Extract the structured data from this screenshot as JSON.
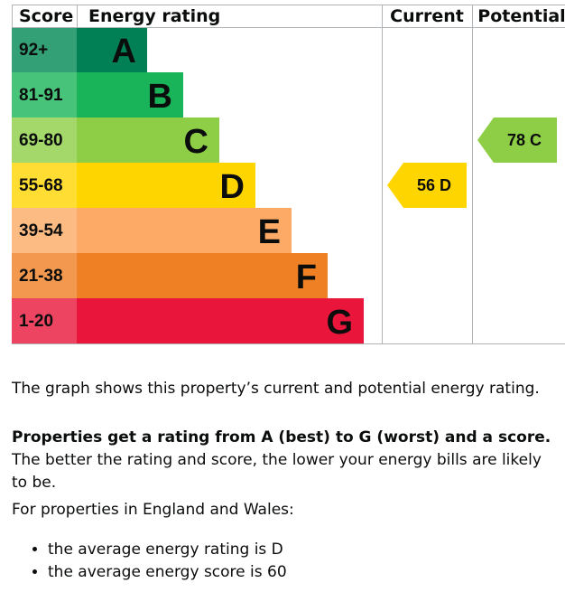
{
  "chart_data": {
    "type": "table",
    "headers": {
      "score": "Score",
      "rating": "Energy rating",
      "current": "Current",
      "potential": "Potential"
    },
    "bands": [
      {
        "range": "92+",
        "letter": "A",
        "color": "#008054",
        "score_color": "#33a076"
      },
      {
        "range": "81-91",
        "letter": "B",
        "color": "#19b459",
        "score_color": "#47c37a"
      },
      {
        "range": "69-80",
        "letter": "C",
        "color": "#8dce46",
        "score_color": "#a4d86b"
      },
      {
        "range": "55-68",
        "letter": "D",
        "color": "#ffd500",
        "score_color": "#ffdd33"
      },
      {
        "range": "39-54",
        "letter": "E",
        "color": "#fcaa65",
        "score_color": "#fdbb84"
      },
      {
        "range": "21-38",
        "letter": "F",
        "color": "#ef8023",
        "score_color": "#f2994f"
      },
      {
        "range": "1-20",
        "letter": "G",
        "color": "#e9153b",
        "score_color": "#ed4462"
      }
    ],
    "current": {
      "score": 56,
      "letter": "D",
      "label": "56 D",
      "color": "#ffd500"
    },
    "potential": {
      "score": 78,
      "letter": "C",
      "label": "78 C",
      "color": "#8dce46"
    }
  },
  "text": {
    "intro": "The graph shows this property’s current and potential energy rating.",
    "bold_lead": "Properties get a rating from A (best) to G (worst) and a score.",
    "rest": " The better the rating and score, the lower your energy bills are likely to be.",
    "region": "For properties in England and Wales:",
    "bullets": [
      "the average energy rating is D",
      "the average energy score is 60"
    ]
  }
}
